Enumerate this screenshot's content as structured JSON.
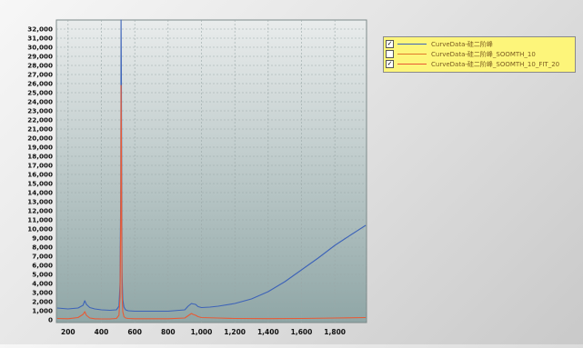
{
  "colors": {
    "plot_top": "#e9ecec",
    "plot_bottom": "#8fa6a6",
    "grid": "#9aa8a8",
    "series1": "#3d63b8",
    "series2": "#e07a2e",
    "series3": "#e85a35",
    "legend_bg": "#fdf57a"
  },
  "chart_data": {
    "type": "line",
    "title": "",
    "xlabel": "",
    "ylabel": "",
    "xlim": [
      130,
      1990
    ],
    "ylim": [
      -300,
      33000
    ],
    "x_ticks": [
      200,
      400,
      600,
      800,
      1000,
      1200,
      1400,
      1600,
      1800
    ],
    "x_tick_labels": [
      "200",
      "400",
      "600",
      "800",
      "1,000",
      "1,200",
      "1,400",
      "1,600",
      "1,800"
    ],
    "y_ticks": [
      0,
      1000,
      2000,
      3000,
      4000,
      5000,
      6000,
      7000,
      8000,
      9000,
      10000,
      11000,
      12000,
      13000,
      14000,
      15000,
      16000,
      17000,
      18000,
      19000,
      20000,
      21000,
      22000,
      23000,
      24000,
      25000,
      26000,
      27000,
      28000,
      29000,
      30000,
      31000,
      32000
    ],
    "y_tick_labels": [
      "0",
      "1,000",
      "2,000",
      "3,000",
      "4,000",
      "5,000",
      "6,000",
      "7,000",
      "8,000",
      "9,000",
      "10,000",
      "11,000",
      "12,000",
      "13,000",
      "14,000",
      "15,000",
      "16,000",
      "17,000",
      "18,000",
      "19,000",
      "20,000",
      "21,000",
      "22,000",
      "23,000",
      "24,000",
      "25,000",
      "26,000",
      "27,000",
      "28,000",
      "29,000",
      "30,000",
      "31,000",
      "32,000"
    ],
    "grid": true,
    "legend_position": "outside-right-top",
    "series": [
      {
        "name": "CurveData-硅二阶峰",
        "color": "#3d63b8",
        "checked": true,
        "visible": true,
        "x": [
          135,
          200,
          260,
          290,
          300,
          310,
          330,
          360,
          400,
          450,
          490,
          505,
          512,
          516,
          518,
          520,
          522,
          524,
          528,
          535,
          545,
          560,
          600,
          700,
          800,
          900,
          920,
          940,
          950,
          965,
          980,
          1000,
          1050,
          1100,
          1200,
          1300,
          1400,
          1500,
          1600,
          1700,
          1800,
          1900,
          1985
        ],
        "y": [
          1300,
          1200,
          1300,
          1600,
          2100,
          1700,
          1350,
          1200,
          1100,
          1050,
          1100,
          1500,
          4000,
          15000,
          33000,
          26000,
          12000,
          5000,
          2200,
          1400,
          1100,
          1000,
          950,
          950,
          950,
          1100,
          1500,
          1800,
          1750,
          1700,
          1450,
          1350,
          1400,
          1500,
          1800,
          2300,
          3100,
          4200,
          5500,
          6800,
          8200,
          9400,
          10400
        ]
      },
      {
        "name": "CurveData-硅二阶峰_SOOMTH_10",
        "color": "#e07a2e",
        "checked": false,
        "visible": false,
        "x": [],
        "y": []
      },
      {
        "name": "CurveData-硅二阶峰_SOOMTH_10_FIT_20",
        "color": "#e85a35",
        "checked": true,
        "visible": true,
        "x": [
          135,
          200,
          260,
          290,
          300,
          310,
          330,
          360,
          400,
          450,
          490,
          505,
          512,
          516,
          518,
          520,
          522,
          524,
          528,
          535,
          545,
          560,
          600,
          700,
          800,
          900,
          920,
          940,
          950,
          965,
          980,
          1000,
          1100,
          1200,
          1400,
          1600,
          1800,
          1985
        ],
        "y": [
          150,
          120,
          250,
          600,
          900,
          500,
          200,
          120,
          100,
          100,
          150,
          500,
          2500,
          12000,
          25800,
          19500,
          8000,
          3000,
          900,
          350,
          200,
          150,
          120,
          120,
          120,
          200,
          450,
          700,
          600,
          500,
          350,
          250,
          200,
          150,
          130,
          150,
          200,
          250
        ]
      }
    ]
  }
}
